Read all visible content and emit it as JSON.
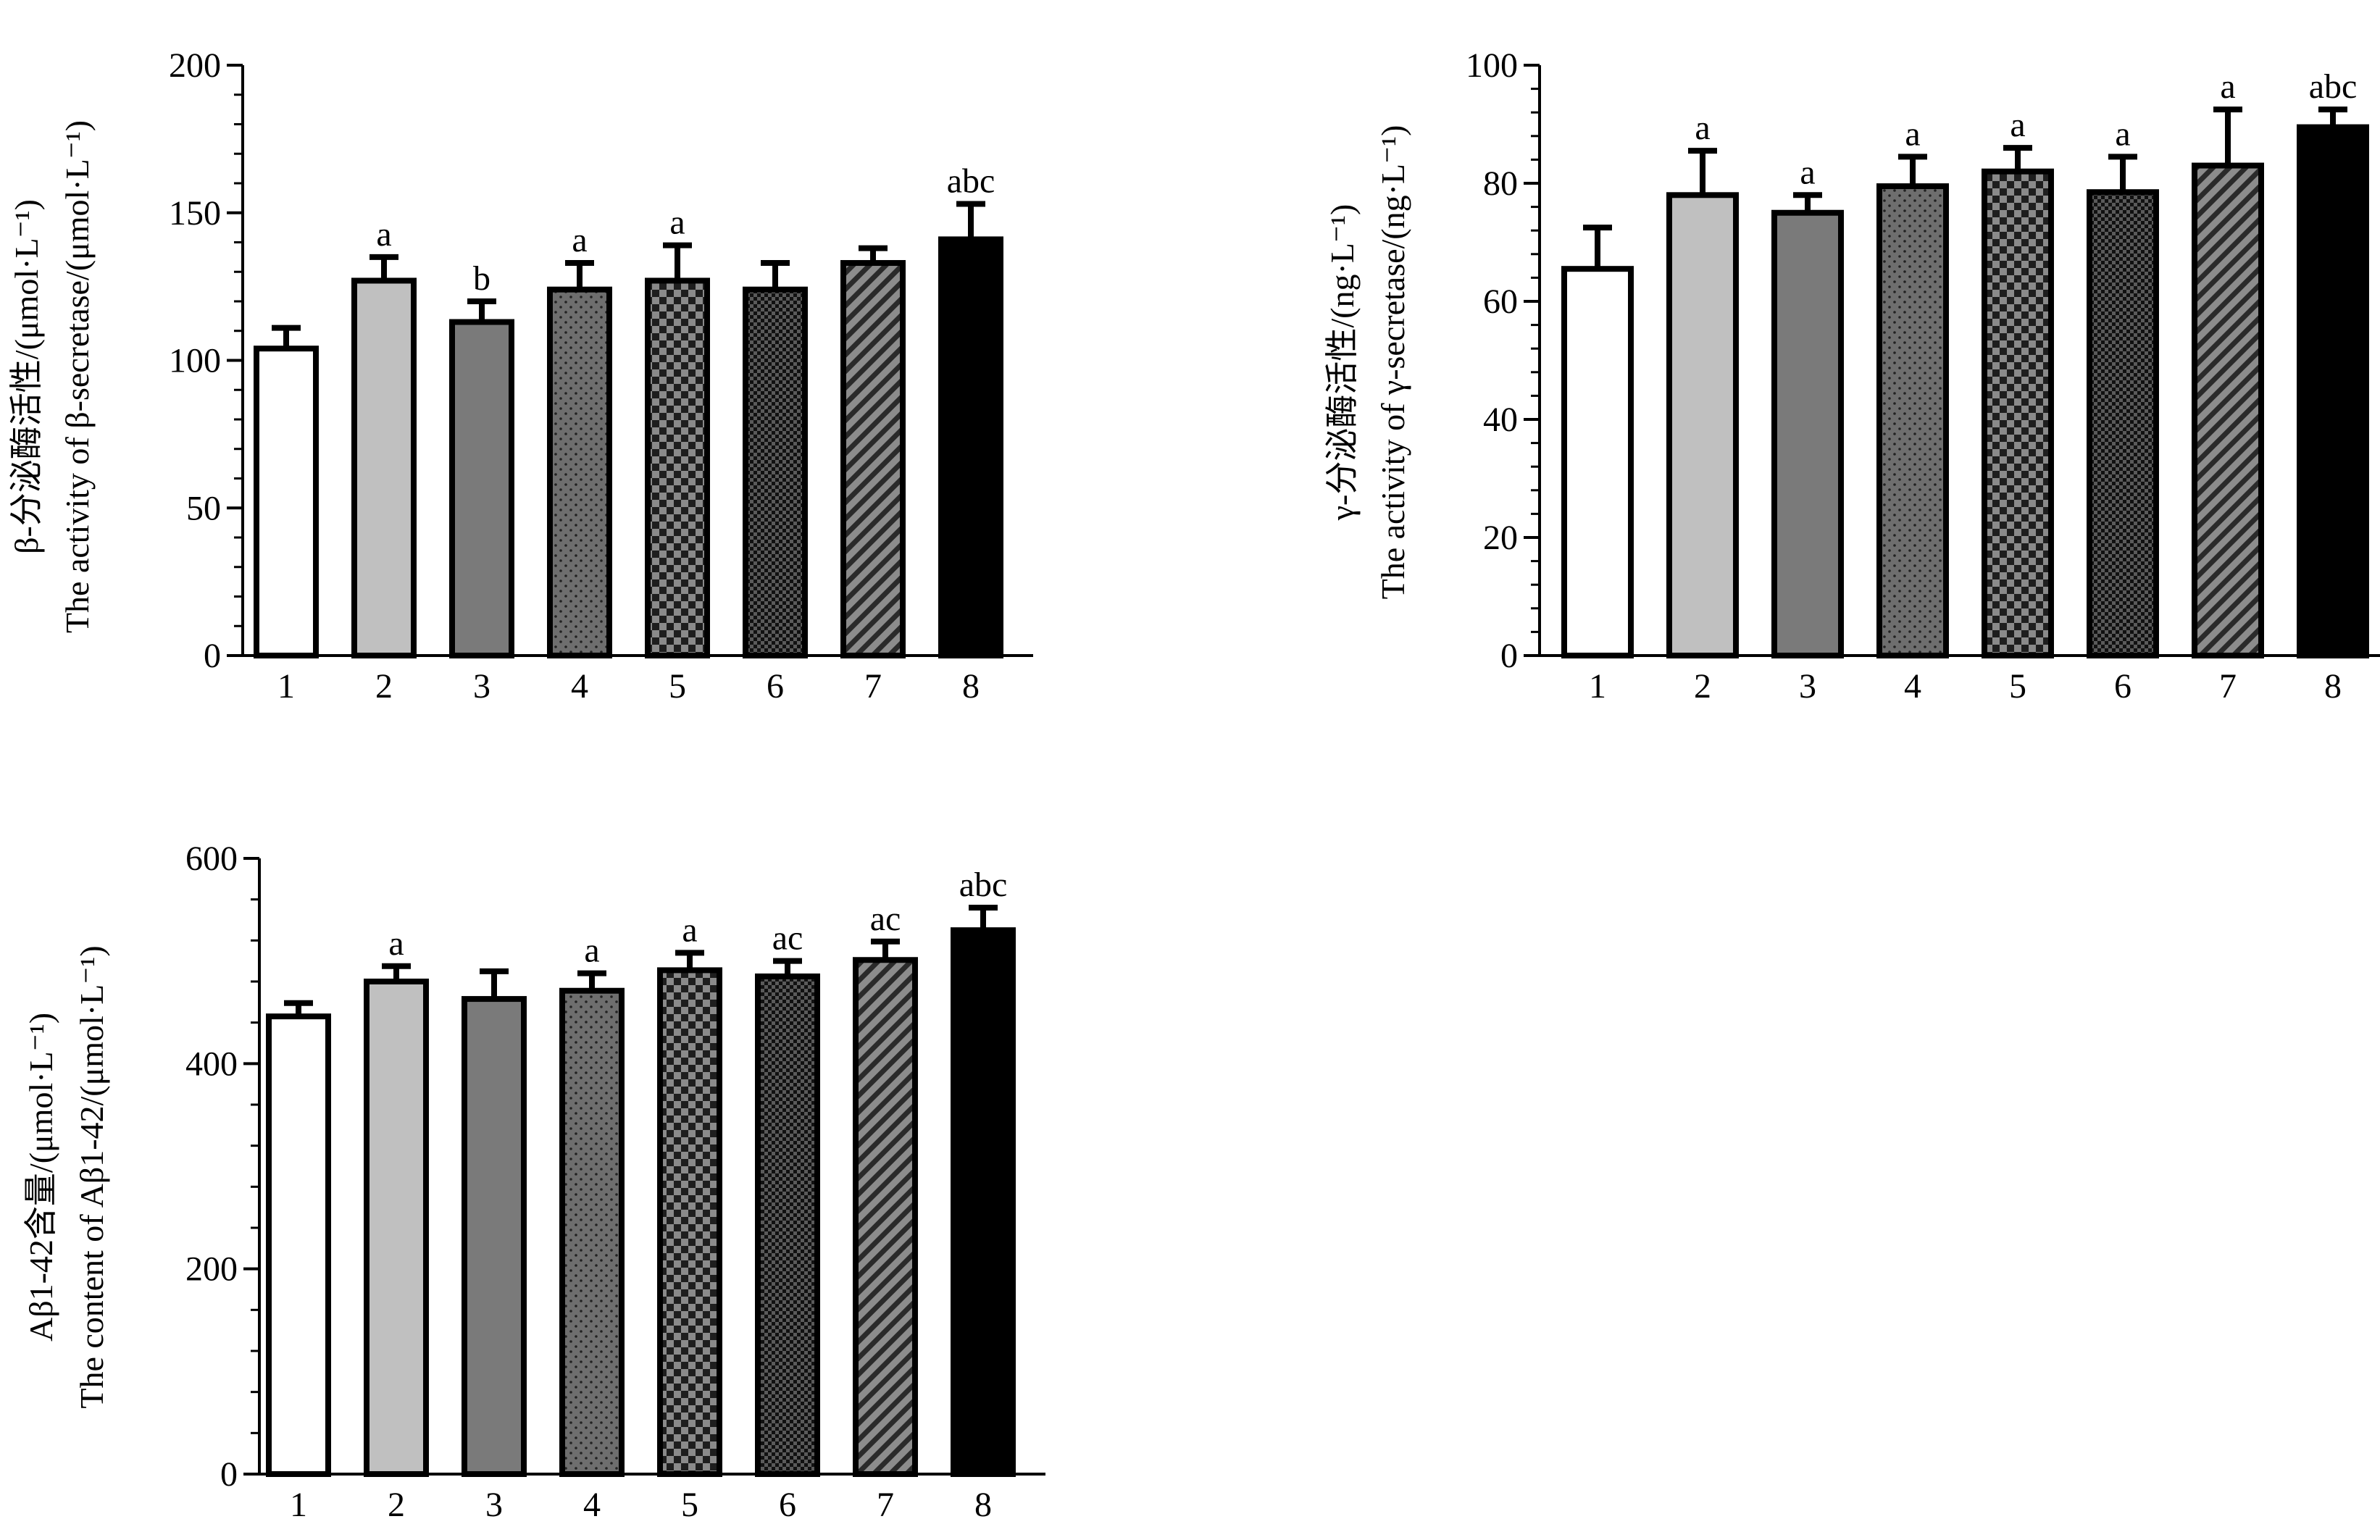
{
  "chart_data": [
    {
      "type": "bar",
      "ylabel_cn": "β-分泌酶活性/(μmol·L⁻¹)",
      "ylabel_en": "The activity of β-secretase/(μmol·L⁻¹)",
      "categories": [
        "1",
        "2",
        "3",
        "4",
        "5",
        "6",
        "7",
        "8"
      ],
      "values": [
        104,
        127,
        113,
        124,
        127,
        124,
        133,
        141
      ],
      "errors": [
        7,
        8,
        7,
        9,
        12,
        9,
        5,
        12
      ],
      "annotations": [
        "",
        "a",
        "b",
        "a",
        "a",
        "",
        "",
        "abc"
      ],
      "ylim": [
        0,
        200
      ],
      "yticks": [
        "0",
        "50",
        "100",
        "150",
        "200"
      ]
    },
    {
      "type": "bar",
      "ylabel_cn": "γ-分泌酶活性/(ng·L⁻¹)",
      "ylabel_en": "The activity of γ-secretase/(ng·L⁻¹)",
      "categories": [
        "1",
        "2",
        "3",
        "4",
        "5",
        "6",
        "7",
        "8"
      ],
      "values": [
        65.5,
        78,
        75,
        79.5,
        82,
        78.5,
        83,
        89.5
      ],
      "errors": [
        7,
        7.5,
        3,
        5,
        4,
        6,
        9.5,
        3
      ],
      "annotations": [
        "",
        "a",
        "a",
        "a",
        "a",
        "a",
        "a",
        "abc"
      ],
      "ylim": [
        0,
        100
      ],
      "yticks": [
        "0",
        "20",
        "40",
        "60",
        "80",
        "100"
      ]
    },
    {
      "type": "bar",
      "ylabel_cn": "Aβ1-42含量/(μmol·L⁻¹)",
      "ylabel_en": "The content of Aβ1-42/(μmol·L⁻¹)",
      "categories": [
        "1",
        "2",
        "3",
        "4",
        "5",
        "6",
        "7",
        "8"
      ],
      "values": [
        446,
        480,
        463,
        471,
        491,
        485,
        501,
        530
      ],
      "errors": [
        13,
        15,
        27,
        17,
        17,
        15,
        18,
        22
      ],
      "annotations": [
        "",
        "a",
        "",
        "a",
        "a",
        "ac",
        "ac",
        "abc"
      ],
      "ylim": [
        0,
        600
      ],
      "yticks": [
        "0",
        "200",
        "400",
        "600"
      ]
    }
  ]
}
